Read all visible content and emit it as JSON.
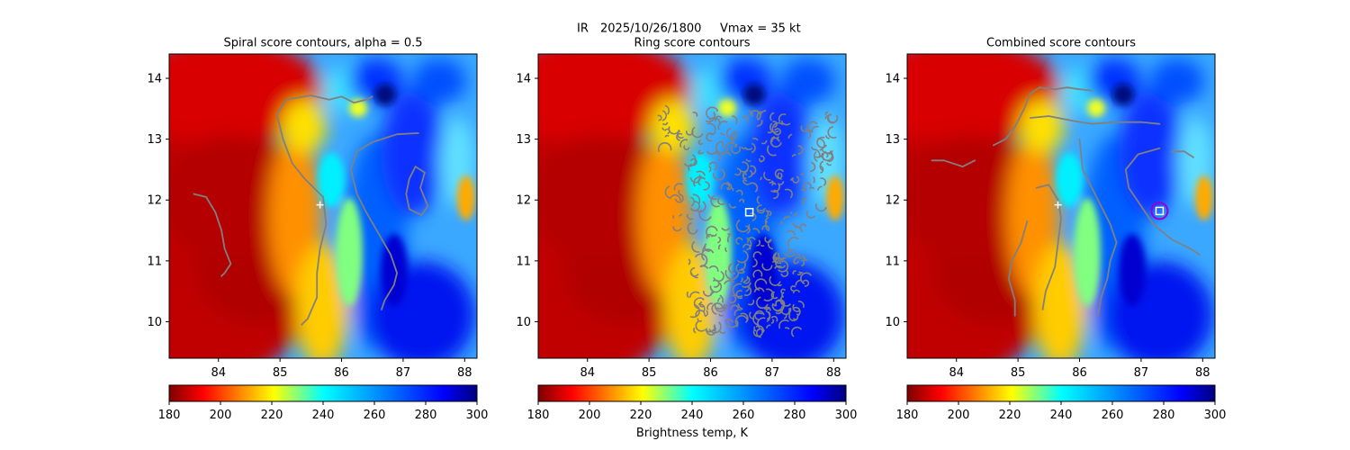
{
  "suptitle": {
    "product": "IR",
    "datetime": "2025/10/26/1800",
    "intensity": "Vmax = 35 kt"
  },
  "chart_data": [
    {
      "type": "heatmap",
      "title": "Spiral score contours, alpha =  0.5",
      "xlim": [
        83.2,
        88.2
      ],
      "ylim": [
        9.4,
        14.4
      ],
      "xticks": [
        "84",
        "85",
        "86",
        "87",
        "88"
      ],
      "yticks": [
        "10",
        "11",
        "12",
        "13",
        "14"
      ],
      "colorbar": {
        "cmap": "jet",
        "range": [
          180,
          300
        ],
        "ticks": [
          "180",
          "200",
          "220",
          "240",
          "260",
          "280",
          "300"
        ],
        "label": ""
      },
      "markers": [
        {
          "symbol": "plus",
          "color": "#ffffff",
          "x": 85.65,
          "y": 11.92
        }
      ],
      "contours": [
        {
          "color": "#808080",
          "points": [
            [
              83.6,
              12.1
            ],
            [
              83.8,
              12.05
            ],
            [
              83.95,
              11.8
            ],
            [
              84.05,
              11.5
            ],
            [
              84.1,
              11.2
            ],
            [
              84.2,
              10.95
            ],
            [
              84.1,
              10.8
            ],
            [
              84.05,
              10.75
            ]
          ]
        },
        {
          "color": "#808080",
          "points": [
            [
              85.8,
              13.65
            ],
            [
              85.5,
              13.72
            ],
            [
              85.1,
              13.65
            ],
            [
              84.95,
              13.4
            ],
            [
              85.05,
              13.0
            ],
            [
              85.2,
              12.6
            ],
            [
              85.4,
              12.35
            ],
            [
              85.7,
              12.05
            ],
            [
              85.75,
              11.6
            ],
            [
              85.65,
              11.2
            ],
            [
              85.6,
              10.8
            ],
            [
              85.6,
              10.4
            ],
            [
              85.45,
              10.05
            ],
            [
              85.35,
              9.95
            ]
          ]
        },
        {
          "color": "#808080",
          "points": [
            [
              85.8,
              13.65
            ],
            [
              86.0,
              13.7
            ],
            [
              86.2,
              13.6
            ],
            [
              86.4,
              13.65
            ],
            [
              86.5,
              13.7
            ]
          ]
        },
        {
          "color": "#808080",
          "points": [
            [
              87.25,
              13.1
            ],
            [
              86.9,
              13.08
            ],
            [
              86.5,
              12.95
            ],
            [
              86.25,
              12.8
            ],
            [
              86.15,
              12.5
            ],
            [
              86.25,
              12.1
            ],
            [
              86.4,
              11.8
            ],
            [
              86.6,
              11.45
            ],
            [
              86.8,
              11.1
            ],
            [
              86.9,
              10.8
            ],
            [
              86.85,
              10.6
            ],
            [
              86.7,
              10.35
            ],
            [
              86.65,
              10.2
            ]
          ]
        },
        {
          "color": "#808080",
          "points": [
            [
              87.1,
              12.35
            ],
            [
              87.2,
              12.55
            ],
            [
              87.35,
              12.45
            ],
            [
              87.28,
              12.2
            ],
            [
              87.4,
              11.9
            ],
            [
              87.3,
              11.75
            ],
            [
              87.1,
              11.85
            ],
            [
              87.05,
              12.1
            ],
            [
              87.1,
              12.35
            ]
          ]
        }
      ]
    },
    {
      "type": "heatmap",
      "title": "Ring score contours",
      "xlim": [
        83.2,
        88.2
      ],
      "ylim": [
        9.4,
        14.4
      ],
      "xticks": [
        "84",
        "85",
        "86",
        "87",
        "88"
      ],
      "yticks": [
        "10",
        "11",
        "12",
        "13",
        "14"
      ],
      "colorbar": {
        "cmap": "jet",
        "range": [
          180,
          300
        ],
        "ticks": [
          "180",
          "200",
          "220",
          "240",
          "260",
          "280",
          "300"
        ],
        "label": "Brightness temp, K"
      },
      "markers": [
        {
          "symbol": "square",
          "color": "#ffffff",
          "x": 86.63,
          "y": 11.8
        }
      ],
      "contour_region": {
        "color": "#808080",
        "style": "dense ring contours",
        "bounds_x": [
          85.0,
          88.0
        ],
        "bounds_y": [
          9.8,
          13.5
        ]
      },
      "contours": []
    },
    {
      "type": "heatmap",
      "title": "Combined score contours",
      "xlim": [
        83.2,
        88.2
      ],
      "ylim": [
        9.4,
        14.4
      ],
      "xticks": [
        "84",
        "85",
        "86",
        "87",
        "88"
      ],
      "yticks": [
        "10",
        "11",
        "12",
        "13",
        "14"
      ],
      "colorbar": {
        "cmap": "jet",
        "range": [
          180,
          300
        ],
        "ticks": [
          "180",
          "200",
          "220",
          "240",
          "260",
          "280",
          "300"
        ],
        "label": ""
      },
      "markers": [
        {
          "symbol": "plus",
          "color": "#ffffff",
          "x": 85.65,
          "y": 11.92
        },
        {
          "symbol": "circle",
          "color": "#9900cc",
          "x": 87.3,
          "y": 11.82
        },
        {
          "symbol": "square",
          "color": "#ffffff",
          "x": 87.3,
          "y": 11.82
        }
      ],
      "contours": [
        {
          "color": "#808080",
          "points": [
            [
              83.6,
              12.65
            ],
            [
              83.8,
              12.65
            ],
            [
              84.1,
              12.55
            ],
            [
              84.3,
              12.65
            ]
          ]
        },
        {
          "color": "#808080",
          "points": [
            [
              84.6,
              12.9
            ],
            [
              84.8,
              13.0
            ],
            [
              84.95,
              13.2
            ],
            [
              85.1,
              13.5
            ],
            [
              85.2,
              13.75
            ],
            [
              85.35,
              13.85
            ],
            [
              85.6,
              13.82
            ],
            [
              85.8,
              13.85
            ],
            [
              86.0,
              13.82
            ],
            [
              86.2,
              13.8
            ]
          ]
        },
        {
          "color": "#808080",
          "points": [
            [
              85.3,
              12.2
            ],
            [
              85.5,
              12.25
            ],
            [
              85.65,
              12.0
            ],
            [
              85.7,
              11.7
            ],
            [
              85.65,
              11.3
            ],
            [
              85.6,
              10.9
            ],
            [
              85.45,
              10.5
            ],
            [
              85.4,
              10.2
            ]
          ]
        },
        {
          "color": "#808080",
          "points": [
            [
              85.15,
              11.65
            ],
            [
              85.05,
              11.3
            ],
            [
              84.9,
              11.0
            ],
            [
              84.85,
              10.7
            ],
            [
              84.95,
              10.35
            ],
            [
              84.95,
              10.1
            ]
          ]
        },
        {
          "color": "#808080",
          "points": [
            [
              86.0,
              13.0
            ],
            [
              86.05,
              12.5
            ],
            [
              86.3,
              12.0
            ],
            [
              86.5,
              11.6
            ],
            [
              86.6,
              11.3
            ],
            [
              86.5,
              11.0
            ],
            [
              86.45,
              10.7
            ],
            [
              86.35,
              10.4
            ],
            [
              86.3,
              10.1
            ]
          ]
        },
        {
          "color": "#808080",
          "points": [
            [
              85.2,
              13.35
            ],
            [
              85.5,
              13.38
            ],
            [
              85.9,
              13.3
            ],
            [
              86.2,
              13.25
            ],
            [
              86.6,
              13.28
            ],
            [
              87.0,
              13.28
            ],
            [
              87.3,
              13.25
            ]
          ]
        },
        {
          "color": "#808080",
          "points": [
            [
              87.3,
              12.85
            ],
            [
              86.95,
              12.75
            ],
            [
              86.75,
              12.5
            ],
            [
              86.8,
              12.2
            ],
            [
              87.0,
              11.9
            ],
            [
              87.2,
              11.6
            ],
            [
              87.5,
              11.35
            ],
            [
              87.8,
              11.2
            ],
            [
              87.95,
              11.1
            ]
          ]
        },
        {
          "color": "#808080",
          "points": [
            [
              87.5,
              12.8
            ],
            [
              87.7,
              12.8
            ],
            [
              87.85,
              12.7
            ]
          ]
        }
      ]
    }
  ]
}
